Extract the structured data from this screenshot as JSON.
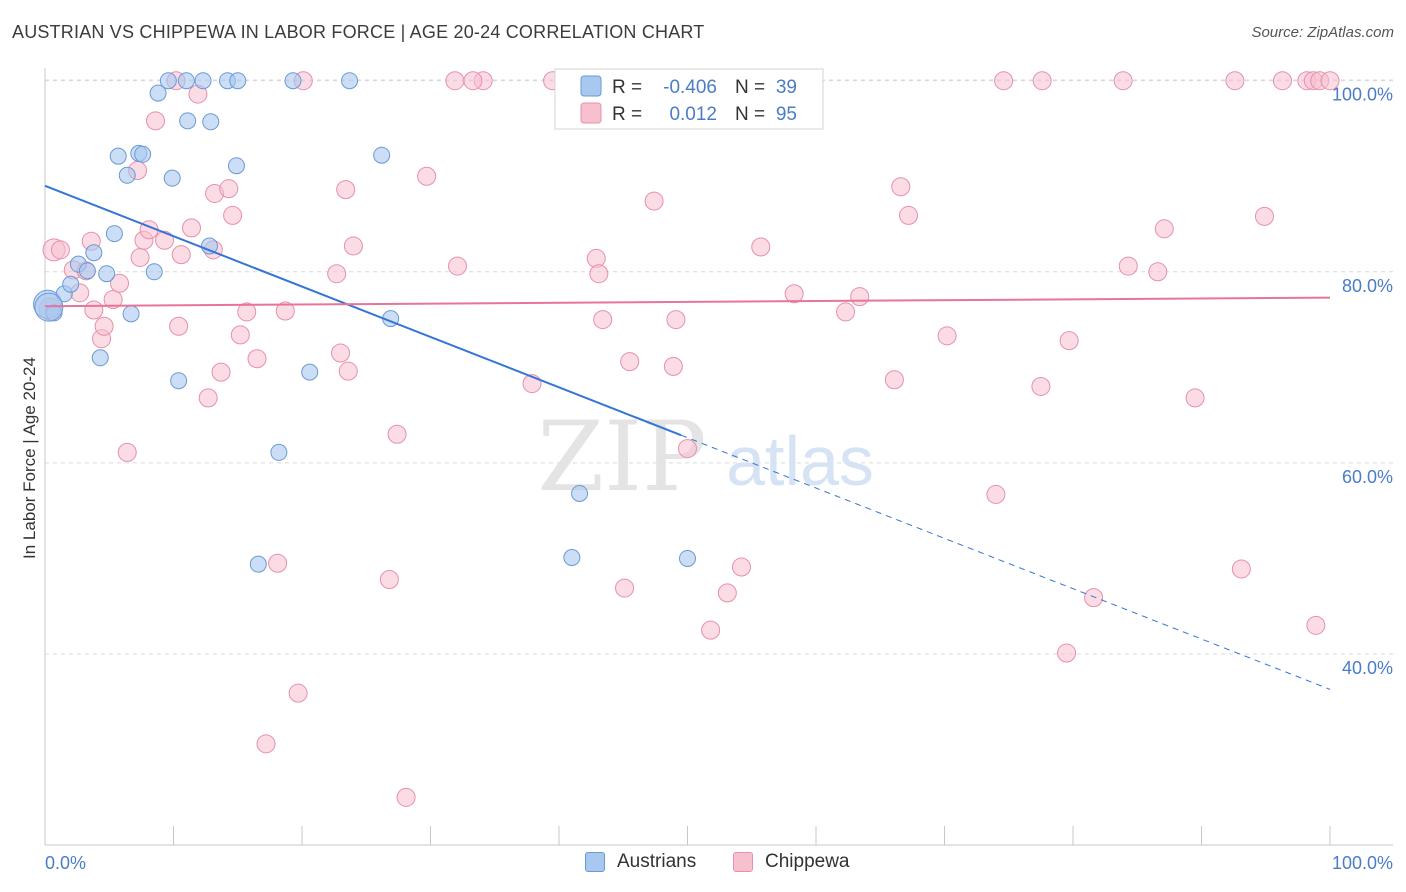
{
  "header": {
    "title": "AUSTRIAN VS CHIPPEWA IN LABOR FORCE | AGE 20-24 CORRELATION CHART",
    "source": "Source: ZipAtlas.com"
  },
  "watermark": {
    "zip": "ZIP",
    "atlas": "atlas"
  },
  "colors": {
    "austrians_fill": "#a9c8f0",
    "austrians_stroke": "#6a9ad6",
    "austrians_line": "#3575d3",
    "chippewa_fill": "#f7c0cf",
    "chippewa_stroke": "#e690aa",
    "chippewa_line": "#e8749a",
    "tick_label": "#4a7cc8",
    "grid": "#d9d9d9"
  },
  "chart_data": {
    "type": "scatter",
    "title": "AUSTRIAN VS CHIPPEWA IN LABOR FORCE | AGE 20-24 CORRELATION CHART",
    "xlabel": "",
    "ylabel": "In Labor Force | Age 20-24",
    "xlim": [
      0,
      100
    ],
    "ylim": [
      20,
      101
    ],
    "x_tick_labels": [
      "0.0%",
      "100.0%"
    ],
    "y_ticks": [
      40,
      60,
      80,
      100
    ],
    "y_tick_labels": [
      "40.0%",
      "60.0%",
      "80.0%",
      "100.0%"
    ],
    "grid": true,
    "legend_position": "top-center",
    "stats": [
      {
        "series": "Austrians",
        "r_label": "R =",
        "r": "-0.406",
        "n_label": "N =",
        "n": "39"
      },
      {
        "series": "Chippewa",
        "r_label": "R =",
        "r": "0.012",
        "n_label": "N =",
        "n": "95"
      }
    ],
    "series": [
      {
        "name": "Austrians",
        "trend": {
          "x": [
            0,
            49.5
          ],
          "y": [
            89.0,
            62.9
          ],
          "dashed_to": [
            100,
            36.3
          ]
        },
        "points": [
          [
            0.2,
            76.6
          ],
          [
            0.7,
            75.7
          ],
          [
            1.5,
            77.7
          ],
          [
            2.0,
            78.7
          ],
          [
            2.6,
            80.8
          ],
          [
            3.3,
            80.1
          ],
          [
            3.8,
            82.0
          ],
          [
            4.8,
            79.8
          ],
          [
            5.4,
            84.0
          ],
          [
            5.7,
            92.1
          ],
          [
            6.4,
            90.1
          ],
          [
            6.7,
            75.6
          ],
          [
            7.3,
            92.4
          ],
          [
            7.6,
            92.3
          ],
          [
            8.5,
            80.0
          ],
          [
            8.8,
            98.7
          ],
          [
            9.6,
            100
          ],
          [
            9.9,
            89.8
          ],
          [
            10.4,
            68.6
          ],
          [
            11.0,
            100
          ],
          [
            11.1,
            95.8
          ],
          [
            12.3,
            100
          ],
          [
            12.9,
            95.7
          ],
          [
            14.2,
            100
          ],
          [
            15.0,
            100
          ],
          [
            14.9,
            91.1
          ],
          [
            16.6,
            49.4
          ],
          [
            18.2,
            61.1
          ],
          [
            19.3,
            100
          ],
          [
            20.6,
            69.5
          ],
          [
            23.7,
            100
          ],
          [
            26.2,
            92.2
          ],
          [
            26.9,
            75.1
          ],
          [
            41.0,
            50.1
          ],
          [
            41.6,
            56.8
          ],
          [
            50.0,
            50.0
          ],
          [
            4.3,
            71.0
          ],
          [
            12.8,
            82.7
          ],
          [
            0.3,
            76.3
          ]
        ]
      },
      {
        "name": "Chippewa",
        "trend": {
          "x": [
            0,
            100
          ],
          "y": [
            76.4,
            77.3
          ]
        },
        "points": [
          [
            0.7,
            82.3
          ],
          [
            1.2,
            82.3
          ],
          [
            2.2,
            80.2
          ],
          [
            2.7,
            77.8
          ],
          [
            3.2,
            80.1
          ],
          [
            3.6,
            83.2
          ],
          [
            3.8,
            76.0
          ],
          [
            4.4,
            73.0
          ],
          [
            4.6,
            74.3
          ],
          [
            5.3,
            77.1
          ],
          [
            5.8,
            78.8
          ],
          [
            6.4,
            61.1
          ],
          [
            7.2,
            90.6
          ],
          [
            7.4,
            81.5
          ],
          [
            7.7,
            83.3
          ],
          [
            8.1,
            84.4
          ],
          [
            8.6,
            95.8
          ],
          [
            9.3,
            83.3
          ],
          [
            10.2,
            100
          ],
          [
            10.4,
            74.3
          ],
          [
            10.6,
            81.8
          ],
          [
            11.4,
            84.6
          ],
          [
            11.9,
            98.6
          ],
          [
            12.7,
            66.8
          ],
          [
            13.1,
            82.3
          ],
          [
            13.2,
            88.2
          ],
          [
            13.7,
            69.5
          ],
          [
            14.3,
            88.7
          ],
          [
            14.6,
            85.9
          ],
          [
            15.2,
            73.4
          ],
          [
            15.7,
            75.8
          ],
          [
            16.5,
            70.9
          ],
          [
            17.2,
            30.6
          ],
          [
            18.1,
            49.5
          ],
          [
            18.7,
            75.9
          ],
          [
            19.7,
            35.9
          ],
          [
            20.1,
            100
          ],
          [
            22.7,
            79.8
          ],
          [
            23.0,
            71.5
          ],
          [
            23.4,
            88.6
          ],
          [
            23.6,
            69.6
          ],
          [
            24.0,
            82.7
          ],
          [
            26.8,
            47.8
          ],
          [
            27.4,
            63.0
          ],
          [
            28.1,
            25.0
          ],
          [
            29.7,
            90.0
          ],
          [
            31.9,
            100
          ],
          [
            32.1,
            80.6
          ],
          [
            34.1,
            100
          ],
          [
            37.9,
            68.3
          ],
          [
            39.5,
            100
          ],
          [
            42.6,
            96.0
          ],
          [
            42.9,
            81.4
          ],
          [
            43.1,
            79.8
          ],
          [
            43.4,
            75.0
          ],
          [
            45.1,
            46.9
          ],
          [
            45.5,
            70.6
          ],
          [
            47.4,
            87.4
          ],
          [
            48.9,
            70.1
          ],
          [
            49.1,
            75.0
          ],
          [
            50.0,
            61.5
          ],
          [
            51.8,
            42.5
          ],
          [
            53.1,
            46.4
          ],
          [
            54.2,
            49.1
          ],
          [
            55.7,
            82.6
          ],
          [
            58.3,
            77.7
          ],
          [
            62.3,
            75.8
          ],
          [
            63.4,
            77.4
          ],
          [
            66.1,
            68.7
          ],
          [
            66.6,
            88.9
          ],
          [
            67.2,
            85.9
          ],
          [
            70.2,
            73.3
          ],
          [
            74.0,
            56.7
          ],
          [
            74.6,
            100
          ],
          [
            77.5,
            68.0
          ],
          [
            77.6,
            100
          ],
          [
            79.5,
            40.1
          ],
          [
            79.7,
            72.8
          ],
          [
            81.6,
            45.9
          ],
          [
            83.9,
            100
          ],
          [
            84.3,
            80.6
          ],
          [
            86.6,
            80.0
          ],
          [
            87.1,
            84.5
          ],
          [
            89.5,
            66.8
          ],
          [
            92.6,
            100
          ],
          [
            93.1,
            48.9
          ],
          [
            94.9,
            85.8
          ],
          [
            96.3,
            100
          ],
          [
            98.2,
            100
          ],
          [
            98.7,
            100
          ],
          [
            99.2,
            100
          ],
          [
            100.0,
            100
          ],
          [
            98.9,
            43.0
          ],
          [
            33.3,
            100
          ],
          [
            0.4,
            76.1
          ]
        ]
      }
    ]
  }
}
